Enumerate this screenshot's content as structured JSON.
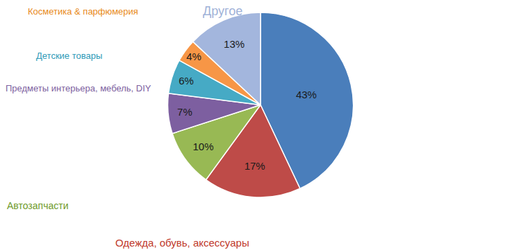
{
  "chart_data": {
    "type": "pie",
    "categories": [
      null,
      "Одежда, обувь, аксессуары",
      "Автозапчасти",
      "Предметы интерьера, мебель, DIY",
      "Детские товары",
      "Косметика & парфюмерия",
      "Другое"
    ],
    "values": [
      43,
      17,
      10,
      7,
      6,
      4,
      13
    ],
    "value_labels": [
      "43%",
      "17%",
      "10%",
      "7%",
      "6%",
      "4%",
      "13%"
    ],
    "colors": [
      "#4a7ebb",
      "#be4b48",
      "#98b954",
      "#7d5fa0",
      "#46aac5",
      "#f79646",
      "#a3b6dd"
    ],
    "data_labels": true
  }
}
